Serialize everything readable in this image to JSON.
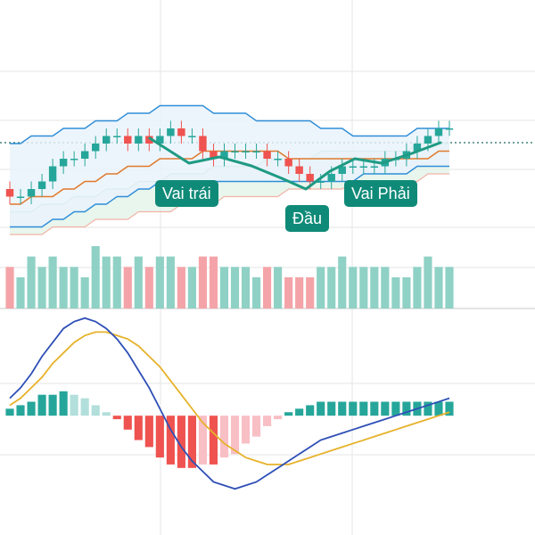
{
  "colors": {
    "up": "#26a69a",
    "down": "#ef5350",
    "volume_up": "#8fd1c5",
    "volume_down": "#f4a4a8",
    "bb_upper": "#2f8ed8",
    "bb_lower": "#2f8ed8",
    "bb_fill": "#e8f3fb",
    "ma_mid": "#e07a2e",
    "cloud_fill": "#dff2e6",
    "cloud_line": "#a7dcb9",
    "cloud_lower_line": "#f2b3a6",
    "pattern_line": "#1f9a83",
    "label_bg": "#0f8a78",
    "macd_line": "#2e4fb6",
    "signal_line": "#e6b22a",
    "hist_pos_strong": "#26a69a",
    "hist_pos_weak": "#b2dfdb",
    "hist_neg_strong": "#ef5350",
    "hist_neg_weak": "#f8bfc5",
    "grid": "#e6e6e6",
    "dotted_price_line": "#1c6b5d"
  },
  "labels": {
    "left_shoulder": "Vai trái",
    "head": "Đầu",
    "right_shoulder": "Vai Phải"
  },
  "chart_data": {
    "type": "candlestick",
    "annotation": "head-and-shoulders pattern",
    "price": {
      "open": [
        44,
        43,
        43,
        44,
        45,
        47,
        48,
        48,
        49,
        50,
        51,
        51,
        50,
        51,
        50,
        51,
        52,
        51,
        51,
        49,
        48,
        49,
        49,
        49,
        49,
        48,
        48,
        47,
        46,
        45,
        45,
        46,
        47,
        47,
        47,
        47,
        48,
        48,
        49,
        50,
        51,
        52
      ],
      "close": [
        43,
        43,
        44,
        45,
        47,
        48,
        48,
        49,
        50,
        51,
        51,
        50,
        51,
        50,
        51,
        52,
        51,
        51,
        49,
        48,
        49,
        49,
        49,
        49,
        48,
        48,
        47,
        46,
        45,
        45,
        46,
        47,
        47,
        47,
        47,
        48,
        48,
        49,
        50,
        51,
        52,
        52
      ],
      "high": [
        45,
        44,
        45,
        46,
        48,
        49,
        49,
        50,
        51,
        52,
        52,
        52,
        52,
        52,
        52,
        53,
        53,
        52,
        52,
        50,
        50,
        50,
        50,
        50,
        50,
        49,
        49,
        48,
        47,
        46,
        47,
        48,
        48,
        48,
        48,
        49,
        49,
        50,
        51,
        52,
        53,
        53
      ],
      "low": [
        42,
        42,
        42,
        43,
        44,
        46,
        47,
        47,
        48,
        49,
        50,
        49,
        49,
        49,
        49,
        50,
        50,
        50,
        48,
        47,
        47,
        48,
        48,
        48,
        47,
        47,
        46,
        45,
        44,
        44,
        44,
        45,
        46,
        46,
        46,
        46,
        47,
        47,
        48,
        49,
        50,
        51
      ],
      "bollinger_upper": [
        50,
        50,
        51,
        51,
        51,
        52,
        52,
        52,
        53,
        53,
        53,
        54,
        54,
        54,
        55,
        55,
        55,
        55,
        55,
        54,
        54,
        54,
        54,
        53,
        53,
        53,
        53,
        53,
        53,
        52,
        52,
        52,
        51,
        51,
        51,
        51,
        51,
        51,
        52,
        52,
        52,
        52
      ],
      "bollinger_lower": [
        39,
        39,
        39,
        39,
        40,
        40,
        41,
        41,
        42,
        42,
        43,
        43,
        44,
        44,
        45,
        45,
        45,
        45,
        45,
        45,
        45,
        45,
        45,
        45,
        45,
        45,
        45,
        45,
        45,
        45,
        45,
        45,
        45,
        46,
        46,
        46,
        46,
        46,
        47,
        47,
        47,
        47
      ],
      "moving_average": [
        42,
        42,
        43,
        43,
        43,
        44,
        44,
        45,
        45,
        46,
        46,
        47,
        47,
        47,
        48,
        48,
        48,
        48,
        49,
        49,
        49,
        49,
        49,
        49,
        49,
        49,
        48,
        48,
        48,
        48,
        48,
        48,
        48,
        48,
        48,
        48,
        48,
        48,
        48,
        48,
        49,
        49
      ],
      "cloud_upper": [
        41,
        41,
        41,
        42,
        42,
        42,
        43,
        43,
        43,
        44,
        44,
        44,
        45,
        45,
        45,
        46,
        46,
        46,
        46,
        47,
        47,
        47,
        47,
        47,
        48,
        48,
        48,
        48,
        48,
        49,
        49,
        49,
        49,
        49,
        49,
        49,
        49,
        49,
        50,
        50,
        50,
        50
      ],
      "cloud_lower": [
        38,
        38,
        38,
        38,
        39,
        39,
        39,
        39,
        40,
        40,
        40,
        40,
        41,
        41,
        41,
        41,
        42,
        42,
        42,
        42,
        43,
        43,
        43,
        43,
        43,
        43,
        44,
        44,
        44,
        44,
        44,
        44,
        45,
        45,
        45,
        45,
        45,
        45,
        45,
        46,
        46,
        46
      ],
      "neckline": [
        49,
        49
      ]
    },
    "volume": [
      4,
      3,
      5,
      4,
      5,
      4,
      4,
      3,
      6,
      5,
      5,
      4,
      5,
      4,
      5,
      5,
      4,
      4,
      5,
      5,
      4,
      4,
      4,
      3,
      4,
      4,
      3,
      3,
      3,
      4,
      4,
      5,
      4,
      4,
      4,
      4,
      3,
      3,
      4,
      5,
      4,
      4
    ],
    "macd": {
      "macd_line": [
        0.5,
        0.8,
        1.2,
        1.7,
        2.1,
        2.5,
        2.7,
        2.8,
        2.7,
        2.5,
        2.2,
        1.8,
        1.3,
        0.8,
        0.2,
        -0.4,
        -0.9,
        -1.3,
        -1.6,
        -1.9,
        -2.0,
        -2.1,
        -2.0,
        -1.9,
        -1.7,
        -1.5,
        -1.3,
        -1.1,
        -0.9,
        -0.7,
        -0.6,
        -0.5,
        -0.4,
        -0.3,
        -0.2,
        -0.1,
        0.0,
        0.1,
        0.2,
        0.3,
        0.4,
        0.5
      ],
      "signal_line": [
        0.3,
        0.5,
        0.8,
        1.1,
        1.5,
        1.8,
        2.1,
        2.3,
        2.4,
        2.4,
        2.3,
        2.2,
        2.0,
        1.7,
        1.4,
        1.0,
        0.6,
        0.2,
        -0.2,
        -0.5,
        -0.8,
        -1.0,
        -1.2,
        -1.3,
        -1.4,
        -1.4,
        -1.4,
        -1.3,
        -1.2,
        -1.1,
        -1.0,
        -0.9,
        -0.8,
        -0.7,
        -0.6,
        -0.5,
        -0.4,
        -0.3,
        -0.2,
        -0.1,
        0.0,
        0.1
      ],
      "histogram": [
        0.2,
        0.3,
        0.4,
        0.6,
        0.6,
        0.7,
        0.6,
        0.5,
        0.3,
        0.1,
        -0.1,
        -0.4,
        -0.7,
        -0.9,
        -1.2,
        -1.4,
        -1.5,
        -1.5,
        -1.4,
        -1.4,
        -1.2,
        -1.1,
        -0.8,
        -0.6,
        -0.3,
        -0.1,
        0.1,
        0.2,
        0.3,
        0.4,
        0.4,
        0.4,
        0.4,
        0.4,
        0.4,
        0.4,
        0.4,
        0.4,
        0.4,
        0.4,
        0.4,
        0.4
      ]
    }
  }
}
